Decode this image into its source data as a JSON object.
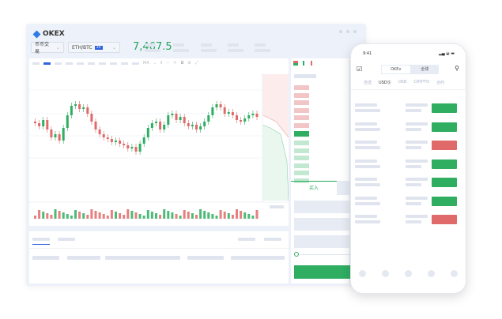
{
  "app": {
    "logo": "OKEX"
  },
  "header": {
    "market_select": "币币交易",
    "pair": "ETH/BTC",
    "leverage": "3X",
    "last_price": "7,467.5"
  },
  "toolbar": {
    "indicator": "MA"
  },
  "orderbook": {
    "buy_tab": "买入"
  },
  "phone": {
    "time": "9:41",
    "segments": [
      "OKEx",
      "全球"
    ],
    "tabs": [
      "自选",
      "USDⓈ",
      "OKB",
      "CRYPTO",
      "合约"
    ],
    "rows": [
      {
        "side": "buy"
      },
      {
        "side": "buy"
      },
      {
        "side": "sell"
      },
      {
        "side": "buy"
      },
      {
        "side": "buy"
      },
      {
        "side": "buy"
      },
      {
        "side": "sell"
      }
    ]
  },
  "colors": {
    "up": "#2fae62",
    "down": "#e06a6a",
    "accent": "#2d62e0"
  }
}
